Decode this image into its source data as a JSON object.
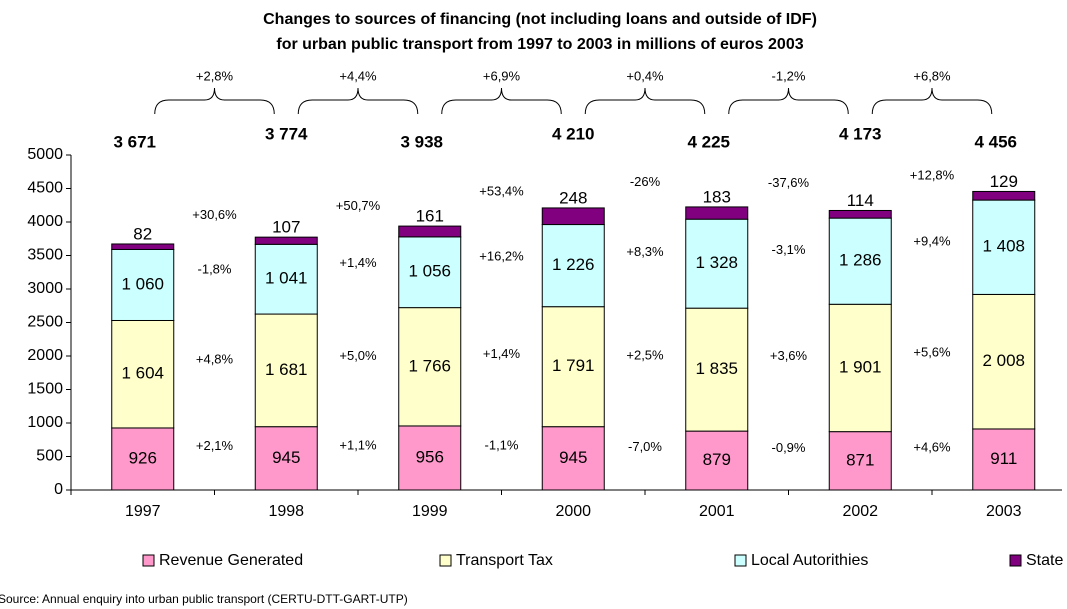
{
  "chart_data": {
    "type": "stacked_bar",
    "title": [
      "Changes to sources of financing (not including loans and outside of IDF)",
      "for urban public transport from 1997 to 2003 in millions of euros 2003"
    ],
    "categories": [
      "1997",
      "1998",
      "1999",
      "2000",
      "2001",
      "2002",
      "2003"
    ],
    "series": [
      {
        "name": "Revenue Generated",
        "color": "#ff99cc",
        "values": [
          926,
          945,
          956,
          945,
          879,
          871,
          911
        ],
        "changes": [
          "+2,1%",
          "+1,1%",
          "-1,1%",
          "-7,0%",
          "-0,9%",
          "+4,6%"
        ]
      },
      {
        "name": "Transport Tax",
        "color": "#ffffcc",
        "values": [
          1604,
          1681,
          1766,
          1791,
          1835,
          1901,
          2008
        ],
        "value_labels": [
          "1 604",
          "1 681",
          "1 766",
          "1 791",
          "1 835",
          "1 901",
          "2 008"
        ],
        "changes": [
          "+4,8%",
          "+5,0%",
          "+1,4%",
          "+2,5%",
          "+3,6%",
          "+5,6%"
        ]
      },
      {
        "name": "Local Autorithies",
        "color": "#ccffff",
        "values": [
          1060,
          1041,
          1056,
          1226,
          1328,
          1286,
          1408
        ],
        "value_labels": [
          "1 060",
          "1 041",
          "1 056",
          "1 226",
          "1 328",
          "1 286",
          "1 408"
        ],
        "changes": [
          "-1,8%",
          "+1,4%",
          "+16,2%",
          "+8,3%",
          "-3,1%",
          "+9,4%"
        ]
      },
      {
        "name": "State",
        "color": "#800080",
        "values": [
          82,
          107,
          161,
          248,
          183,
          114,
          129
        ],
        "changes": [
          "+30,6%",
          "+50,7%",
          "+53,4%",
          "-26%",
          "-37,6%",
          "+12,8%"
        ]
      }
    ],
    "totals": {
      "values": [
        3671,
        3774,
        3938,
        4210,
        4225,
        4173,
        4456
      ],
      "value_labels": [
        "3 671",
        "3 774",
        "3 938",
        "4 210",
        "4 225",
        "4 173",
        "4 456"
      ],
      "color": "#0000ff"
    },
    "total_changes": [
      "+2,8%",
      "+4,4%",
      "+6,9%",
      "+0,4%",
      "-1,2%",
      "+6,8%"
    ],
    "ylim": [
      0,
      5000
    ],
    "yticks": [
      0,
      500,
      1000,
      1500,
      2000,
      2500,
      3000,
      3500,
      4000,
      4500,
      5000
    ],
    "grid": false,
    "legend": "bottom",
    "source": "Source: Annual enquiry into urban public transport (CERTU-DTT-GART-UTP)"
  }
}
